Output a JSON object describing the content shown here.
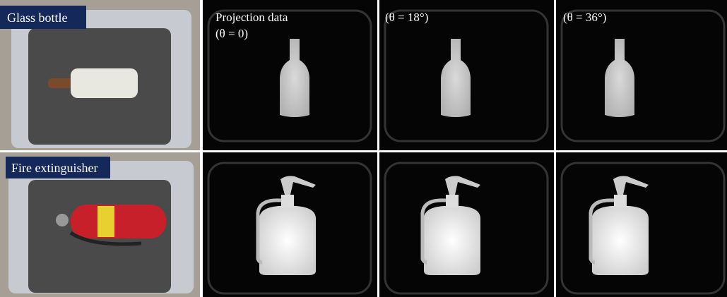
{
  "rows": [
    {
      "label": "Glass bottle"
    },
    {
      "label": "Fire extinguisher"
    }
  ],
  "columns": [
    {
      "lines": [
        "Projection data",
        "(θ = 0)"
      ]
    },
    {
      "lines": [
        "(θ = 18°)"
      ]
    },
    {
      "lines": [
        "(θ = 36°)"
      ]
    }
  ]
}
